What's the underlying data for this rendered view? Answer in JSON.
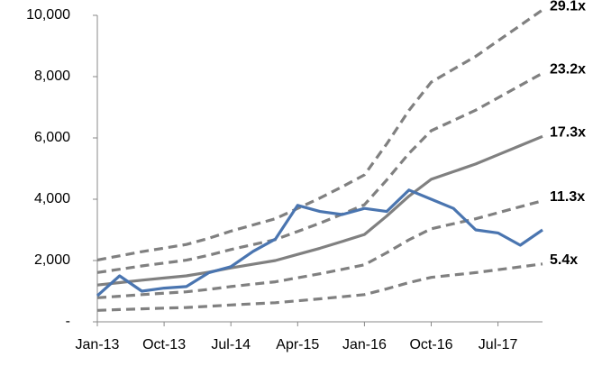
{
  "chart_data": {
    "type": "line",
    "categories": [
      "Jan-13",
      null,
      null,
      "Oct-13",
      null,
      null,
      "Jul-14",
      null,
      null,
      "Apr-15",
      null,
      null,
      "Jan-16",
      null,
      null,
      "Oct-16",
      null,
      null,
      "Jul-17",
      null,
      null
    ],
    "ylim": [
      0,
      10000
    ],
    "yticks": [
      {
        "value": 0,
        "label": "-"
      },
      {
        "value": 2000,
        "label": "2,000"
      },
      {
        "value": 4000,
        "label": "4,000"
      },
      {
        "value": 6000,
        "label": "6,000"
      },
      {
        "value": 8000,
        "label": "8,000"
      },
      {
        "value": 10000,
        "label": "10,000"
      }
    ],
    "series": [
      {
        "name": "29.1x",
        "color": "#808080",
        "dashed": true,
        "values": [
          2018,
          2153,
          2288,
          2405,
          2523,
          2725,
          2960,
          3162,
          3364,
          3700,
          4037,
          4407,
          4794,
          5803,
          6896,
          7821,
          8242,
          8662,
          9167,
          9672,
          10176
        ]
      },
      {
        "name": "23.2x",
        "color": "#808080",
        "dashed": true,
        "values": [
          1609,
          1716,
          1824,
          1918,
          2012,
          2172,
          2360,
          2521,
          2682,
          2950,
          3218,
          3513,
          3822,
          4626,
          5498,
          6236,
          6571,
          6906,
          7308,
          7711,
          8113
        ]
      },
      {
        "name": "17.3x",
        "color": "#808080",
        "dashed": false,
        "values": [
          1200,
          1280,
          1360,
          1430,
          1500,
          1620,
          1760,
          1880,
          2000,
          2200,
          2400,
          2620,
          2850,
          3450,
          4100,
          4650,
          4900,
          5150,
          5450,
          5750,
          6050
        ]
      },
      {
        "name": "11.3x",
        "color": "#808080",
        "dashed": true,
        "values": [
          784,
          836,
          888,
          934,
          980,
          1058,
          1149,
          1228,
          1306,
          1437,
          1567,
          1711,
          1861,
          2253,
          2677,
          3036,
          3200,
          3363,
          3559,
          3755,
          3951
        ]
      },
      {
        "name": "5.4x",
        "color": "#808080",
        "dashed": true,
        "values": [
          374,
          399,
          424,
          446,
          468,
          505,
          549,
          587,
          624,
          686,
          749,
          817,
          889,
          1076,
          1279,
          1451,
          1529,
          1607,
          1700,
          1794,
          1888
        ]
      },
      {
        "color": "#4a75b0",
        "dashed": false,
        "values": [
          850,
          1500,
          1000,
          1100,
          1150,
          1600,
          1800,
          2300,
          2700,
          3800,
          3600,
          3500,
          3700,
          3600,
          4300,
          4000,
          3700,
          3000,
          2900,
          2500,
          3000
        ]
      }
    ]
  }
}
